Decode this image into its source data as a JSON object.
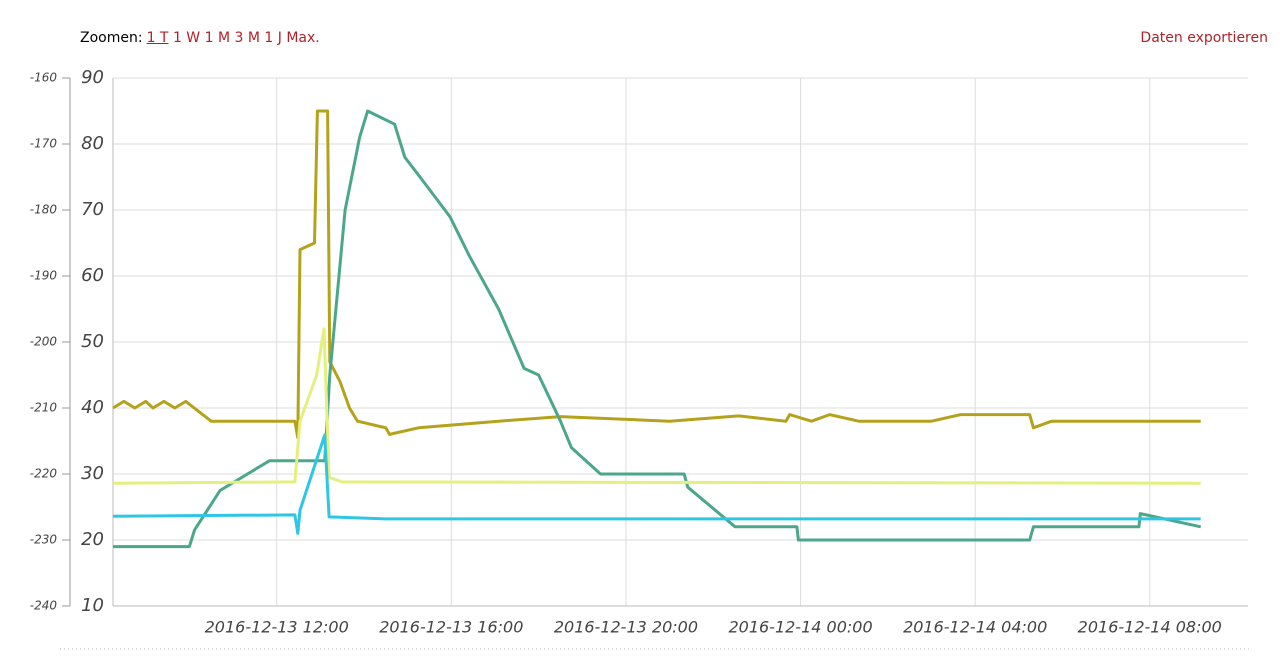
{
  "toolbar": {
    "zoom_label": "Zoomen:",
    "zoom_options": [
      "1 T",
      "1 W",
      "1 M",
      "3 M",
      "1 J",
      "Max."
    ],
    "export": "Daten exportieren"
  },
  "chart_data": {
    "type": "line",
    "xlim": [
      "2016-12-13 08:15",
      "2016-12-14 10:15"
    ],
    "xticks": [
      "2016-12-13 12:00",
      "2016-12-13 16:00",
      "2016-12-13 20:00",
      "2016-12-14 00:00",
      "2016-12-14 04:00",
      "2016-12-14 08:00"
    ],
    "ylim": [
      10,
      90
    ],
    "yticks": [
      10,
      20,
      30,
      40,
      50,
      60,
      70,
      80,
      90
    ],
    "y2lim": [
      -240,
      -160
    ],
    "y2ticks": [
      -240,
      -230,
      -220,
      -210,
      -200,
      -190,
      -180,
      -170,
      -160
    ],
    "grid": true,
    "series": [
      {
        "color": "#b5a21c",
        "x": [
          "2016-12-13 08:15",
          "2016-12-13 08:30",
          "2016-12-13 08:45",
          "2016-12-13 09:00",
          "2016-12-13 09:10",
          "2016-12-13 09:25",
          "2016-12-13 09:40",
          "2016-12-13 09:55",
          "2016-12-13 10:30",
          "2016-12-13 12:25",
          "2016-12-13 12:29",
          "2016-12-13 12:32",
          "2016-12-13 12:52",
          "2016-12-13 12:56",
          "2016-12-13 13:10",
          "2016-12-13 13:13",
          "2016-12-13 13:27",
          "2016-12-13 13:40",
          "2016-12-13 13:51",
          "2016-12-13 14:30",
          "2016-12-13 14:35",
          "2016-12-13 15:15",
          "2016-12-13 17:05",
          "2016-12-13 18:30",
          "2016-12-13 21:00",
          "2016-12-13 22:35",
          "2016-12-13 23:40",
          "2016-12-13 23:45",
          "2016-12-14 00:15",
          "2016-12-14 00:40",
          "2016-12-14 01:20",
          "2016-12-14 03:00",
          "2016-12-14 03:40",
          "2016-12-14 05:15",
          "2016-12-14 05:20",
          "2016-12-14 05:45",
          "2016-12-14 09:10"
        ],
        "values": [
          40,
          41,
          40,
          41,
          40,
          41,
          40,
          41,
          38,
          38,
          35.5,
          64,
          65,
          85,
          85,
          47,
          44,
          40,
          38,
          37,
          36,
          37,
          38,
          38.7,
          38,
          38.8,
          38,
          39,
          38,
          39,
          38,
          38,
          39,
          39,
          37,
          38,
          38
        ]
      },
      {
        "color": "#4ba78a",
        "x": [
          "2016-12-13 08:15",
          "2016-12-13 10:00",
          "2016-12-13 10:07",
          "2016-12-13 10:42",
          "2016-12-13 11:50",
          "2016-12-13 13:06",
          "2016-12-13 13:13",
          "2016-12-13 13:34",
          "2016-12-13 13:54",
          "2016-12-13 14:05",
          "2016-12-13 14:42",
          "2016-12-13 14:56",
          "2016-12-13 15:17",
          "2016-12-13 15:58",
          "2016-12-13 16:25",
          "2016-12-13 17:05",
          "2016-12-13 17:40",
          "2016-12-13 18:00",
          "2016-12-13 18:30",
          "2016-12-13 18:45",
          "2016-12-13 19:25",
          "2016-12-13 21:20",
          "2016-12-13 21:25",
          "2016-12-13 22:30",
          "2016-12-13 23:55",
          "2016-12-13 23:57",
          "2016-12-14 05:15",
          "2016-12-14 05:20",
          "2016-12-14 07:45",
          "2016-12-14 07:47",
          "2016-12-14 09:10"
        ],
        "values": [
          19,
          19,
          21.5,
          27.5,
          32,
          32,
          45,
          70,
          81,
          85,
          83,
          78,
          75,
          69,
          63,
          55,
          46,
          45,
          38,
          34,
          30,
          30,
          28,
          22,
          22,
          20,
          20,
          22,
          22,
          24,
          22
        ]
      },
      {
        "color": "#e4ef7e",
        "x": [
          "2016-12-13 08:15",
          "2016-12-13 12:25",
          "2016-12-13 12:32",
          "2016-12-13 12:55",
          "2016-12-13 13:05",
          "2016-12-13 13:12",
          "2016-12-13 13:30",
          "2016-12-14 09:10"
        ],
        "values": [
          28.6,
          28.8,
          38,
          45,
          52,
          29.5,
          28.8,
          28.6
        ]
      },
      {
        "color": "#2fc6e6",
        "x": [
          "2016-12-13 08:15",
          "2016-12-13 12:25",
          "2016-12-13 12:29",
          "2016-12-13 12:32",
          "2016-12-13 13:06",
          "2016-12-13 13:12",
          "2016-12-13 14:30",
          "2016-12-14 09:10"
        ],
        "values": [
          23.6,
          23.8,
          21,
          24.5,
          35.9,
          23.5,
          23.2,
          23.2
        ]
      }
    ]
  }
}
